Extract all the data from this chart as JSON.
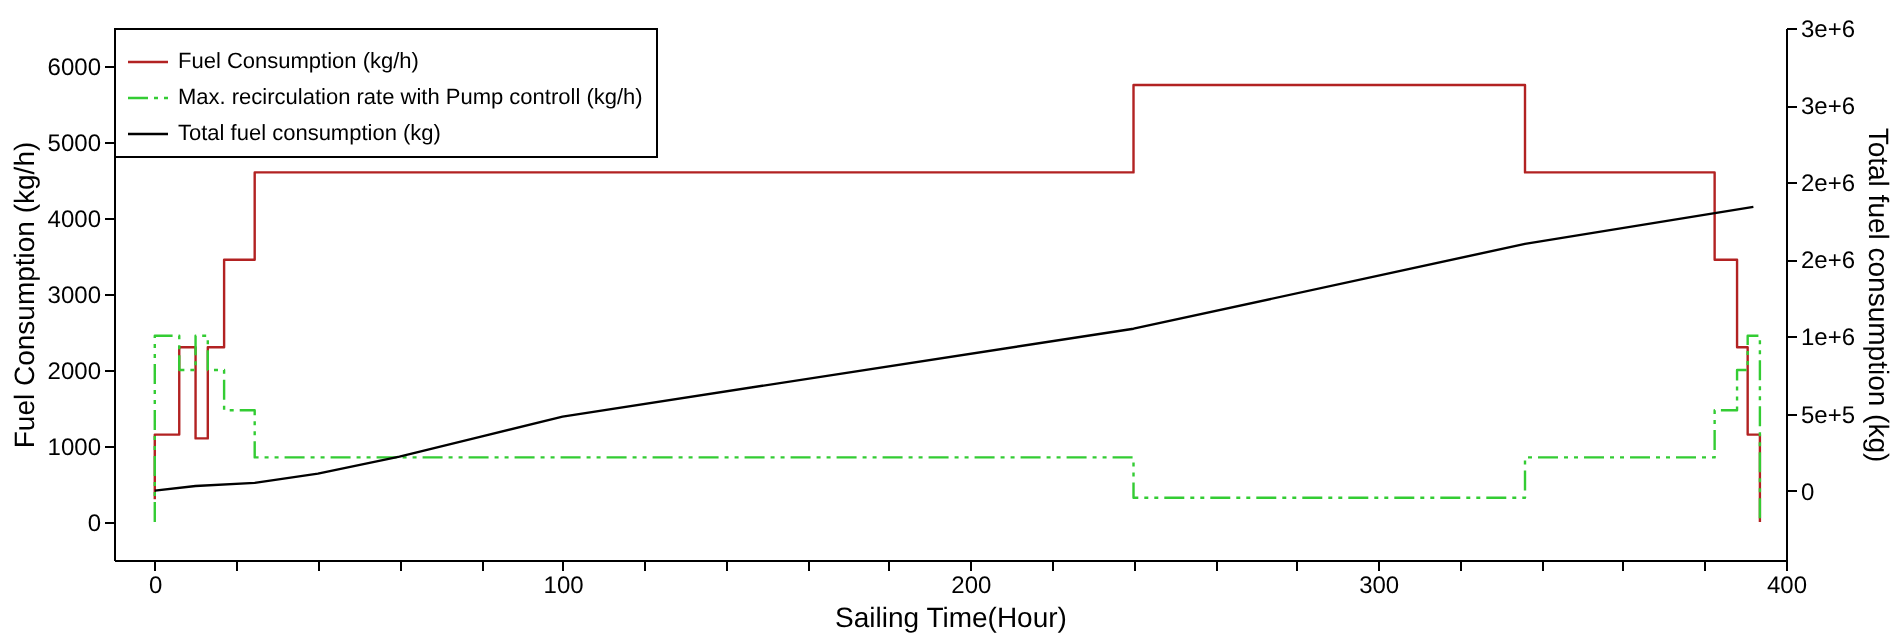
{
  "chart_data": {
    "type": "step",
    "xlabel": "Sailing Time(Hour)",
    "ylabel": "Fuel Consumption (kg/h)",
    "y2label": "Total fuel consumption (kg)",
    "xlim": [
      -10,
      400
    ],
    "xticks": [
      0,
      {
        "value": 20,
        "label": null
      },
      {
        "value": 40,
        "label": null
      },
      {
        "value": 60,
        "label": null
      },
      {
        "value": 80,
        "label": null
      },
      100,
      {
        "value": 120,
        "label": null
      },
      {
        "value": 140,
        "label": null
      },
      {
        "value": 160,
        "label": null
      },
      {
        "value": 180,
        "label": null
      },
      200,
      {
        "value": 220,
        "label": null
      },
      {
        "value": 240,
        "label": null
      },
      {
        "value": 260,
        "label": null
      },
      {
        "value": 280,
        "label": null
      },
      300,
      {
        "value": 320,
        "label": null
      },
      {
        "value": 340,
        "label": null
      },
      {
        "value": 360,
        "label": null
      },
      {
        "value": 380,
        "label": null
      },
      400
    ],
    "ylim": [
      -500,
      6500
    ],
    "yticks": [
      0,
      1000,
      2000,
      3000,
      4000,
      5000,
      6000
    ],
    "y2lim": [
      -450000,
      3000000
    ],
    "y2ticks": [
      0,
      {
        "value": 500000,
        "label": "5e+5"
      },
      {
        "value": 1000000,
        "label": "1e+6"
      },
      {
        "value": 1500000,
        "label": "2e+6"
      },
      {
        "value": 2000000,
        "label": "2e+6"
      },
      {
        "value": 2500000,
        "label": "3e+6"
      },
      {
        "value": 3000000,
        "label": "3e+6"
      }
    ],
    "grid": false,
    "legend": "top left",
    "series": [
      {
        "name": "Fuel Consumption (kg/h)",
        "color": "#b22222",
        "line_style": "solid",
        "x": [
          0,
          0,
          6,
          10,
          13,
          17,
          24.5,
          240,
          336,
          382.5,
          388,
          390.6,
          393.6
        ],
        "values": [
          300,
          1150,
          2300,
          1100,
          2300,
          3450,
          4600,
          5750,
          4600,
          3450,
          2300,
          1150,
          0
        ]
      },
      {
        "name": "Max. recirculation rate with Pump controll (kg/h)",
        "color": "#33cc33",
        "line_style": "dashed",
        "x": [
          0,
          0,
          6,
          10,
          13,
          17,
          24.5,
          240,
          336,
          382.5,
          388,
          390.6,
          393.6
        ],
        "values": [
          0,
          2450,
          2000,
          2450,
          2000,
          1470,
          850,
          320,
          850,
          1470,
          2000,
          2450,
          0
        ]
      },
      {
        "name": "Total fuel consumption (kg)",
        "type": "line",
        "axis": "y2",
        "color": "#000000",
        "line_style": "solid",
        "x": [
          0,
          10,
          24.5,
          40,
          60,
          80,
          100,
          240,
          336,
          392
        ],
        "values": [
          0,
          30000,
          50000,
          110000,
          220000,
          350000,
          480000,
          1050000,
          1600000,
          1840000
        ]
      }
    ]
  }
}
